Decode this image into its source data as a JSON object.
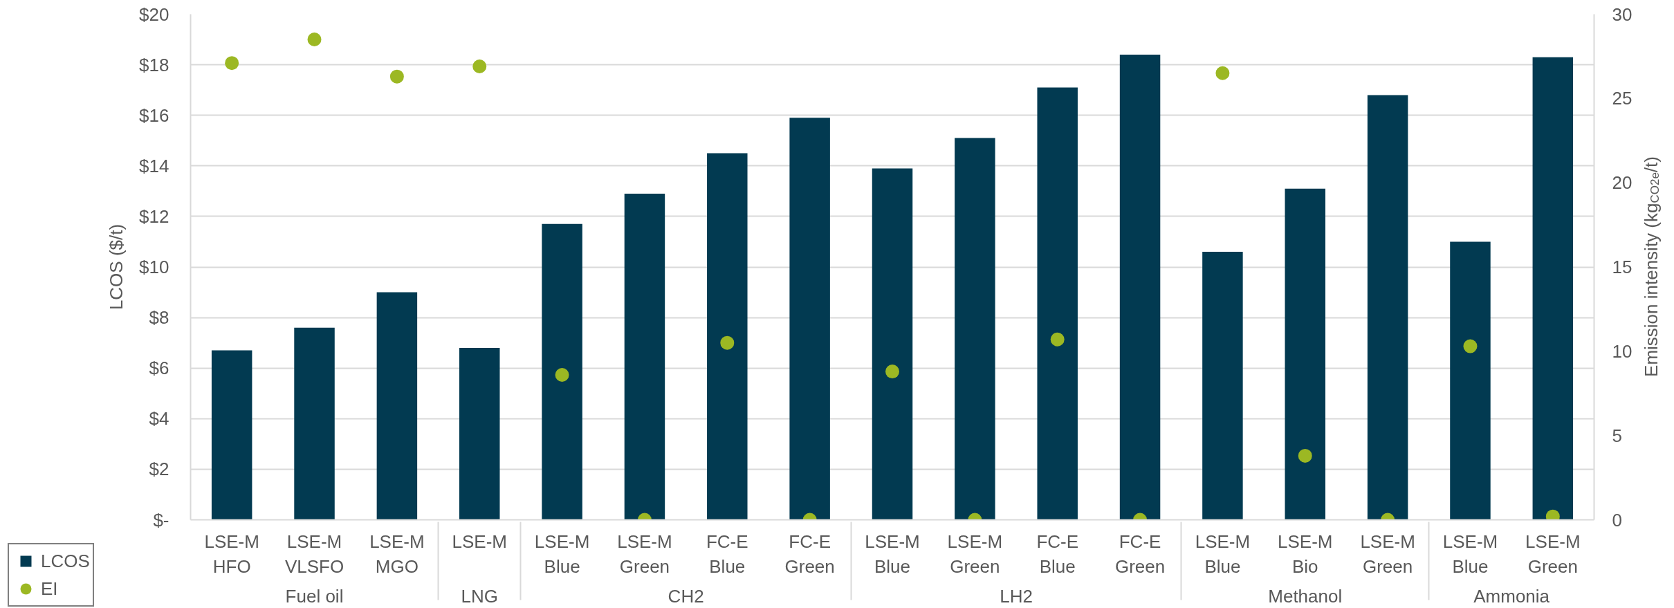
{
  "chart_data": {
    "type": "bar",
    "categories": [
      [
        "Fuel oil",
        "LSE-M\nHFO"
      ],
      [
        null,
        "LSE-M\nVLSFO"
      ],
      [
        null,
        "LSE-M\nMGO"
      ],
      [
        "LNG",
        "LSE-M"
      ],
      [
        "CH2",
        "LSE-M\nBlue"
      ],
      [
        null,
        "LSE-M\nGreen"
      ],
      [
        null,
        "FC-E\nBlue"
      ],
      [
        null,
        "FC-E\nGreen"
      ],
      [
        "LH2",
        "LSE-M\nBlue"
      ],
      [
        null,
        "LSE-M\nGreen"
      ],
      [
        null,
        "FC-E\nBlue"
      ],
      [
        null,
        "FC-E\nGreen"
      ],
      [
        "Methanol",
        "LSE-M\nBlue"
      ],
      [
        null,
        "LSE-M\nBio"
      ],
      [
        null,
        "LSE-M\nGreen"
      ],
      [
        "Ammonia",
        "LSE-M\nBlue"
      ],
      [
        null,
        "LSE-M\nGreen"
      ]
    ],
    "series": [
      {
        "name": "LCOS",
        "color": "#023a51",
        "values": [
          6.7,
          7.6,
          9.0,
          6.8,
          11.7,
          12.9,
          14.5,
          15.9,
          13.9,
          15.1,
          17.1,
          18.4,
          10.6,
          13.1,
          16.8,
          11.0,
          18.3
        ]
      },
      {
        "name": "EI",
        "type": "scatter",
        "axis": "y2",
        "color": "#9cb823",
        "values": [
          27.1,
          28.5,
          26.3,
          26.9,
          8.6,
          0,
          10.5,
          0,
          8.8,
          0,
          10.7,
          0,
          26.5,
          3.8,
          0,
          10.3,
          0.2
        ]
      }
    ],
    "ylabel": "LCOS ($/t)",
    "y2label": "Emission intensity (kg$_{CO2e}$/t)",
    "ylim": [
      0,
      20
    ],
    "yticks": [
      {
        "value": 0,
        "label": "$-"
      },
      {
        "value": 2,
        "label": "$2"
      },
      {
        "value": 4,
        "label": "$4"
      },
      {
        "value": 6,
        "label": "$6"
      },
      {
        "value": 8,
        "label": "$8"
      },
      {
        "value": 10,
        "label": "$10"
      },
      {
        "value": 12,
        "label": "$12"
      },
      {
        "value": 14,
        "label": "$14"
      },
      {
        "value": 16,
        "label": "$16"
      },
      {
        "value": 18,
        "label": "$18"
      },
      {
        "value": 20,
        "label": "$20"
      }
    ],
    "y2lim": [
      0,
      30
    ],
    "y2ticks": [
      0,
      5,
      10,
      15,
      20,
      25,
      30
    ],
    "grid": "y",
    "legend": "bottom left",
    "marker": "circle"
  }
}
